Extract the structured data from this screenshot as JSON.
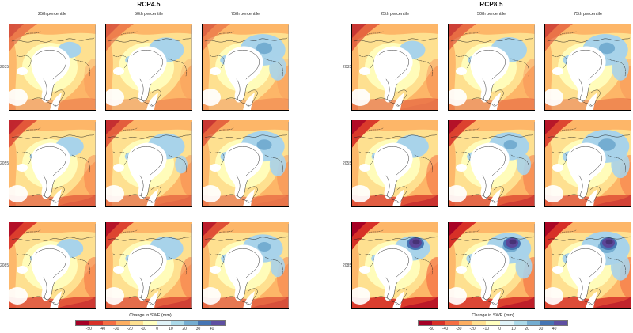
{
  "figure": {
    "panels": [
      {
        "title": "RCP4.5",
        "col_headers": [
          "25th percentile",
          "50th percentile",
          "75th percentile"
        ],
        "rows": [
          {
            "label": "2035",
            "maps": [
              {
                "warm": 0.3,
                "cool": 0.18,
                "purple": false
              },
              {
                "warm": 0.26,
                "cool": 0.48,
                "purple": false
              },
              {
                "warm": 0.22,
                "cool": 0.72,
                "purple": false
              }
            ]
          },
          {
            "label": "2055",
            "maps": [
              {
                "warm": 0.55,
                "cool": 0.3,
                "purple": false
              },
              {
                "warm": 0.5,
                "cool": 0.52,
                "purple": false
              },
              {
                "warm": 0.45,
                "cool": 0.68,
                "purple": false
              }
            ]
          },
          {
            "label": "2085",
            "maps": [
              {
                "warm": 0.75,
                "cool": 0.28,
                "purple": false
              },
              {
                "warm": 0.7,
                "cool": 0.45,
                "purple": false
              },
              {
                "warm": 0.62,
                "cool": 0.6,
                "purple": false
              }
            ]
          }
        ],
        "colorbar": {
          "label": "Change in SWE (mm)",
          "tick_labels": [
            "-50",
            "-40",
            "-30",
            "-20",
            "-10",
            "0",
            "10",
            "20",
            "30",
            "40"
          ],
          "segment_colors": [
            "#a50026",
            "#d73027",
            "#f46d43",
            "#fdae61",
            "#fee090",
            "#ffffbf",
            "#e0f3f8",
            "#abd9e9",
            "#74add1",
            "#4575b4",
            "#5e4fa2"
          ]
        }
      },
      {
        "title": "RCP8.5",
        "col_headers": [
          "25th percentile",
          "50th percentile",
          "75th percentile"
        ],
        "rows": [
          {
            "label": "2035",
            "maps": [
              {
                "warm": 0.45,
                "cool": 0.25,
                "purple": false
              },
              {
                "warm": 0.4,
                "cool": 0.5,
                "purple": false
              },
              {
                "warm": 0.35,
                "cool": 0.72,
                "purple": false
              }
            ]
          },
          {
            "label": "2055",
            "maps": [
              {
                "warm": 0.78,
                "cool": 0.42,
                "purple": false
              },
              {
                "warm": 0.72,
                "cool": 0.6,
                "purple": false
              },
              {
                "warm": 0.68,
                "cool": 0.78,
                "purple": false
              }
            ]
          },
          {
            "label": "2085",
            "maps": [
              {
                "warm": 0.98,
                "cool": 0.48,
                "purple": true
              },
              {
                "warm": 0.92,
                "cool": 0.7,
                "purple": true
              },
              {
                "warm": 0.88,
                "cool": 0.8,
                "purple": true
              }
            ]
          }
        ],
        "colorbar": {
          "label": "Change in SWE (mm)",
          "tick_labels": [
            "-50",
            "-40",
            "-30",
            "-20",
            "-10",
            "0",
            "10",
            "20",
            "30",
            "40"
          ],
          "segment_colors": [
            "#a50026",
            "#d73027",
            "#f46d43",
            "#fdae61",
            "#fee090",
            "#ffffbf",
            "#e0f3f8",
            "#abd9e9",
            "#74add1",
            "#4575b4",
            "#5e4fa2"
          ]
        }
      }
    ]
  }
}
